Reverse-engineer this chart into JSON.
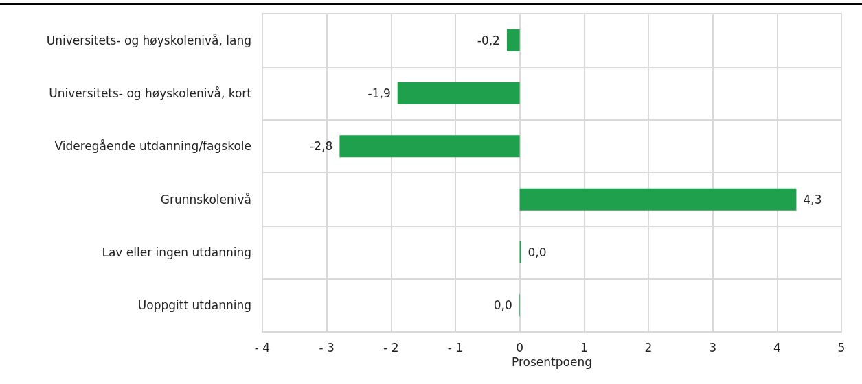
{
  "chart_data": {
    "type": "bar",
    "orientation": "horizontal",
    "xlabel": "Prosentpoeng",
    "categories": [
      "Universitets- og høyskolenivå, lang",
      "Universitets- og høyskolenivå, kort",
      "Videregående utdanning/fagskole",
      "Grunnskolenivå",
      "Lav eller ingen utdanning",
      "Uoppgitt utdanning"
    ],
    "values": [
      -0.2,
      -1.9,
      -2.8,
      4.3,
      0.02,
      -0.01
    ],
    "value_labels": [
      "-0,2",
      "-1,9",
      "-2,8",
      "4,3",
      "0,0",
      "0,0"
    ],
    "color": "#1fa04c",
    "xlim": [
      -4,
      5
    ],
    "xticks": [
      {
        "value": -4,
        "label": "- 4"
      },
      {
        "value": -3,
        "label": "- 3"
      },
      {
        "value": -2,
        "label": "- 2"
      },
      {
        "value": -1,
        "label": "- 1"
      },
      0,
      1,
      2,
      3,
      4,
      5
    ],
    "grid": true
  }
}
